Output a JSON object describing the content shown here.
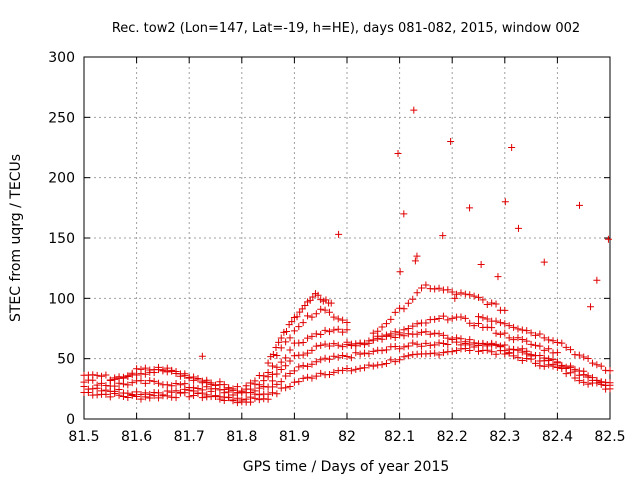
{
  "chart_data": {
    "type": "scatter",
    "title": "Rec. tow2 (Lon=147, Lat=-19, h=HE), days 081-082, 2015, window 002",
    "xlabel": "GPS time / Days of year 2015",
    "ylabel": "STEC from uqrg / TECUs",
    "xlim": [
      81.5,
      82.5
    ],
    "ylim": [
      0,
      300
    ],
    "grid": true,
    "marker": "+",
    "color": "#e00000",
    "xticks": [
      81.5,
      81.6,
      81.7,
      81.8,
      81.9,
      82,
      82.1,
      82.2,
      82.3,
      82.4,
      82.5
    ],
    "xtick_labels": [
      "81.5",
      "81.6",
      "81.7",
      "81.8",
      "81.9",
      "82",
      "82.1",
      "82.2",
      "82.3",
      "82.4",
      "82.5"
    ],
    "yticks": [
      0,
      50,
      100,
      150,
      200,
      250,
      300
    ],
    "ytick_labels": [
      "0",
      "50",
      "100",
      "150",
      "200",
      "250",
      "300"
    ],
    "tracks": [
      {
        "x": [
          81.5,
          81.55,
          81.6,
          81.65,
          81.7,
          81.75,
          81.8,
          81.85,
          81.9,
          81.95,
          82.0,
          82.05,
          82.1,
          82.15,
          82.2,
          82.25,
          82.3,
          82.35,
          82.4,
          82.45,
          82.5
        ],
        "y": [
          22,
          20,
          18,
          19,
          20,
          18,
          14,
          18,
          30,
          38,
          40,
          44,
          50,
          53,
          57,
          58,
          54,
          48,
          42,
          32,
          25
        ]
      },
      {
        "x": [
          81.5,
          81.55,
          81.6,
          81.65,
          81.7,
          81.75,
          81.8,
          81.85,
          81.9,
          81.95,
          82.0,
          82.05,
          82.1,
          82.15,
          82.2,
          82.25,
          82.3,
          82.35,
          82.4,
          82.45,
          82.5
        ],
        "y": [
          27,
          24,
          22,
          22,
          23,
          21,
          16,
          22,
          40,
          48,
          52,
          55,
          60,
          62,
          64,
          62,
          60,
          55,
          48,
          38,
          28
        ]
      },
      {
        "x": [
          81.5,
          81.55,
          81.6,
          81.65,
          81.7,
          81.75,
          81.8,
          81.85,
          81.9,
          81.95,
          82.0,
          82.05,
          82.1,
          82.15,
          82.2,
          82.25,
          82.3,
          82.35,
          82.4,
          82.45,
          82.5
        ],
        "y": [
          32,
          28,
          30,
          30,
          27,
          24,
          20,
          28,
          52,
          60,
          62,
          66,
          70,
          72,
          68,
          64,
          58,
          52,
          46,
          36,
          30
        ]
      },
      {
        "x": [
          81.5,
          81.55,
          81.6,
          81.65,
          81.7,
          81.75,
          81.8,
          81.85,
          81.9,
          81.95,
          82.0
        ],
        "y": [
          38,
          34,
          38,
          40,
          34,
          28,
          22,
          34,
          62,
          72,
          74
        ]
      },
      {
        "x": [
          81.55,
          81.6,
          81.65,
          81.7,
          81.75,
          81.8,
          81.85,
          81.9,
          81.95,
          82.0
        ],
        "y": [
          30,
          40,
          42,
          36,
          30,
          24,
          40,
          75,
          92,
          80
        ]
      },
      {
        "x": [
          81.85,
          81.88,
          81.91,
          81.94,
          81.97
        ],
        "y": [
          48,
          70,
          90,
          102,
          96
        ]
      },
      {
        "x": [
          82.05,
          82.1,
          82.15,
          82.2,
          82.25,
          82.3
        ],
        "y": [
          70,
          90,
          110,
          105,
          100,
          90
        ]
      },
      {
        "x": [
          82.25,
          82.3,
          82.35,
          82.4,
          82.45,
          82.5
        ],
        "y": [
          85,
          80,
          72,
          65,
          50,
          40
        ]
      },
      {
        "x": [
          82.0,
          82.05,
          82.1,
          82.15,
          82.2,
          82.25,
          82.3,
          82.35,
          82.4
        ],
        "y": [
          60,
          65,
          72,
          80,
          85,
          78,
          70,
          62,
          55
        ]
      }
    ],
    "outliers": {
      "x": [
        82.097,
        82.101,
        82.108,
        82.127,
        82.133,
        82.197,
        82.205,
        82.233,
        82.301,
        82.313,
        82.326,
        81.984,
        82.442,
        82.497,
        82.287,
        82.255,
        82.375,
        82.182,
        82.13,
        81.725,
        82.475,
        82.463
      ],
      "y": [
        220,
        122,
        170,
        256,
        135,
        230,
        100,
        175,
        180,
        225,
        158,
        153,
        177,
        149,
        118,
        128,
        130,
        152,
        131,
        52,
        115,
        93
      ]
    }
  }
}
